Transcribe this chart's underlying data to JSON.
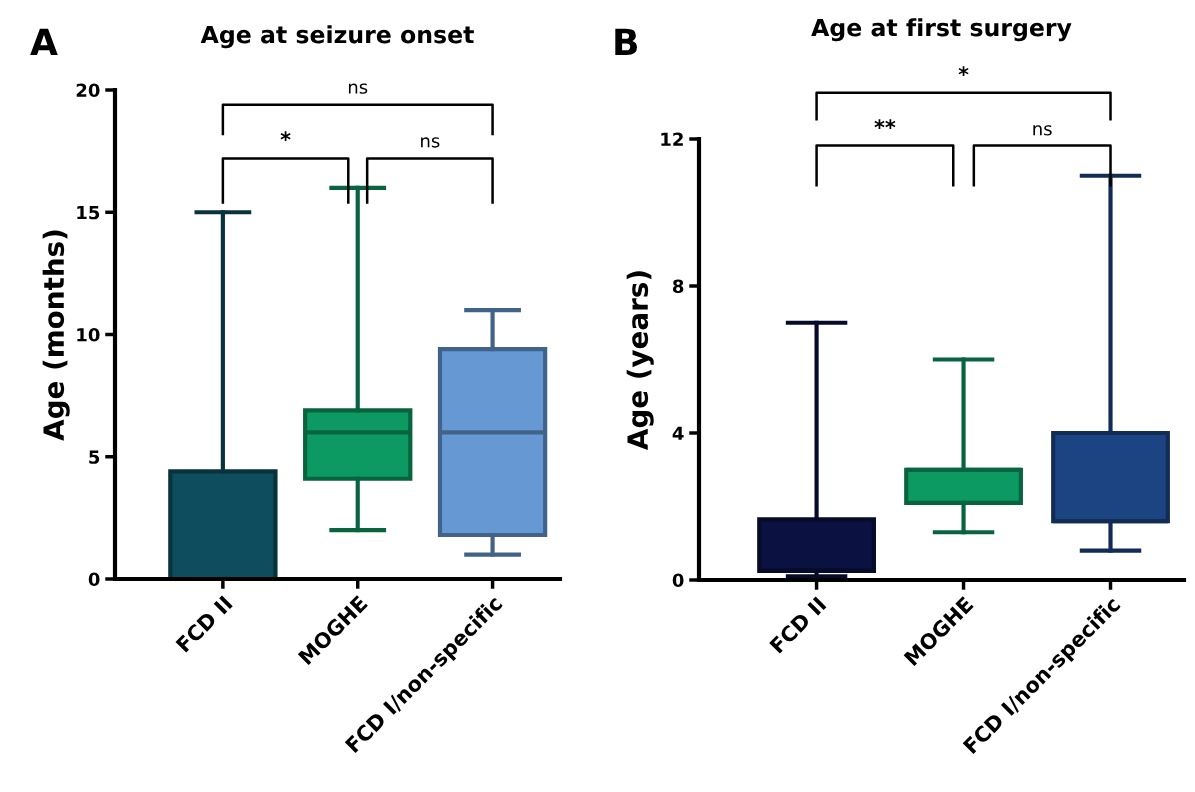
{
  "chart_data": [
    {
      "type": "box",
      "title": "Age at seizure onset",
      "ylabel": "Age (months)",
      "categories": [
        "FCD II",
        "MOGHE",
        "FCD I/non-specific"
      ],
      "boxes": [
        {
          "low": 0,
          "q1": 0,
          "median": 0,
          "q3": 4.4,
          "high": 15
        },
        {
          "low": 2,
          "q1": 4.1,
          "median": 6,
          "q3": 6.9,
          "high": 16
        },
        {
          "low": 1,
          "q1": 1.8,
          "median": 6,
          "q3": 9.4,
          "high": 11
        }
      ],
      "colors": [
        "#0e4d5e",
        "#0c9a62",
        "#6699d3"
      ],
      "ylim": [
        0,
        20
      ],
      "yticks": [
        0,
        5,
        10,
        15,
        20
      ],
      "grid": false,
      "annotations": [
        "A",
        "*",
        "ns",
        "ns"
      ]
    },
    {
      "type": "box",
      "title": "Age at first surgery",
      "ylabel": "Age (years)",
      "categories": [
        "FCD II",
        "MOGHE",
        "FCD I/non-specific"
      ],
      "boxes": [
        {
          "low": 0.1,
          "q1": 0.25,
          "median": 0.25,
          "q3": 1.65,
          "high": 7
        },
        {
          "low": 1.3,
          "q1": 2.1,
          "median": 3,
          "q3": 3,
          "high": 6
        },
        {
          "low": 0.8,
          "q1": 1.6,
          "median": 1.6,
          "q3": 4,
          "high": 11
        }
      ],
      "colors": [
        "#0b1140",
        "#0c9a62",
        "#1c4382"
      ],
      "ylim": [
        0,
        12
      ],
      "yticks": [
        0,
        4,
        8,
        12
      ],
      "grid": false,
      "annotations": [
        "B",
        "**",
        "ns",
        "*"
      ]
    }
  ]
}
